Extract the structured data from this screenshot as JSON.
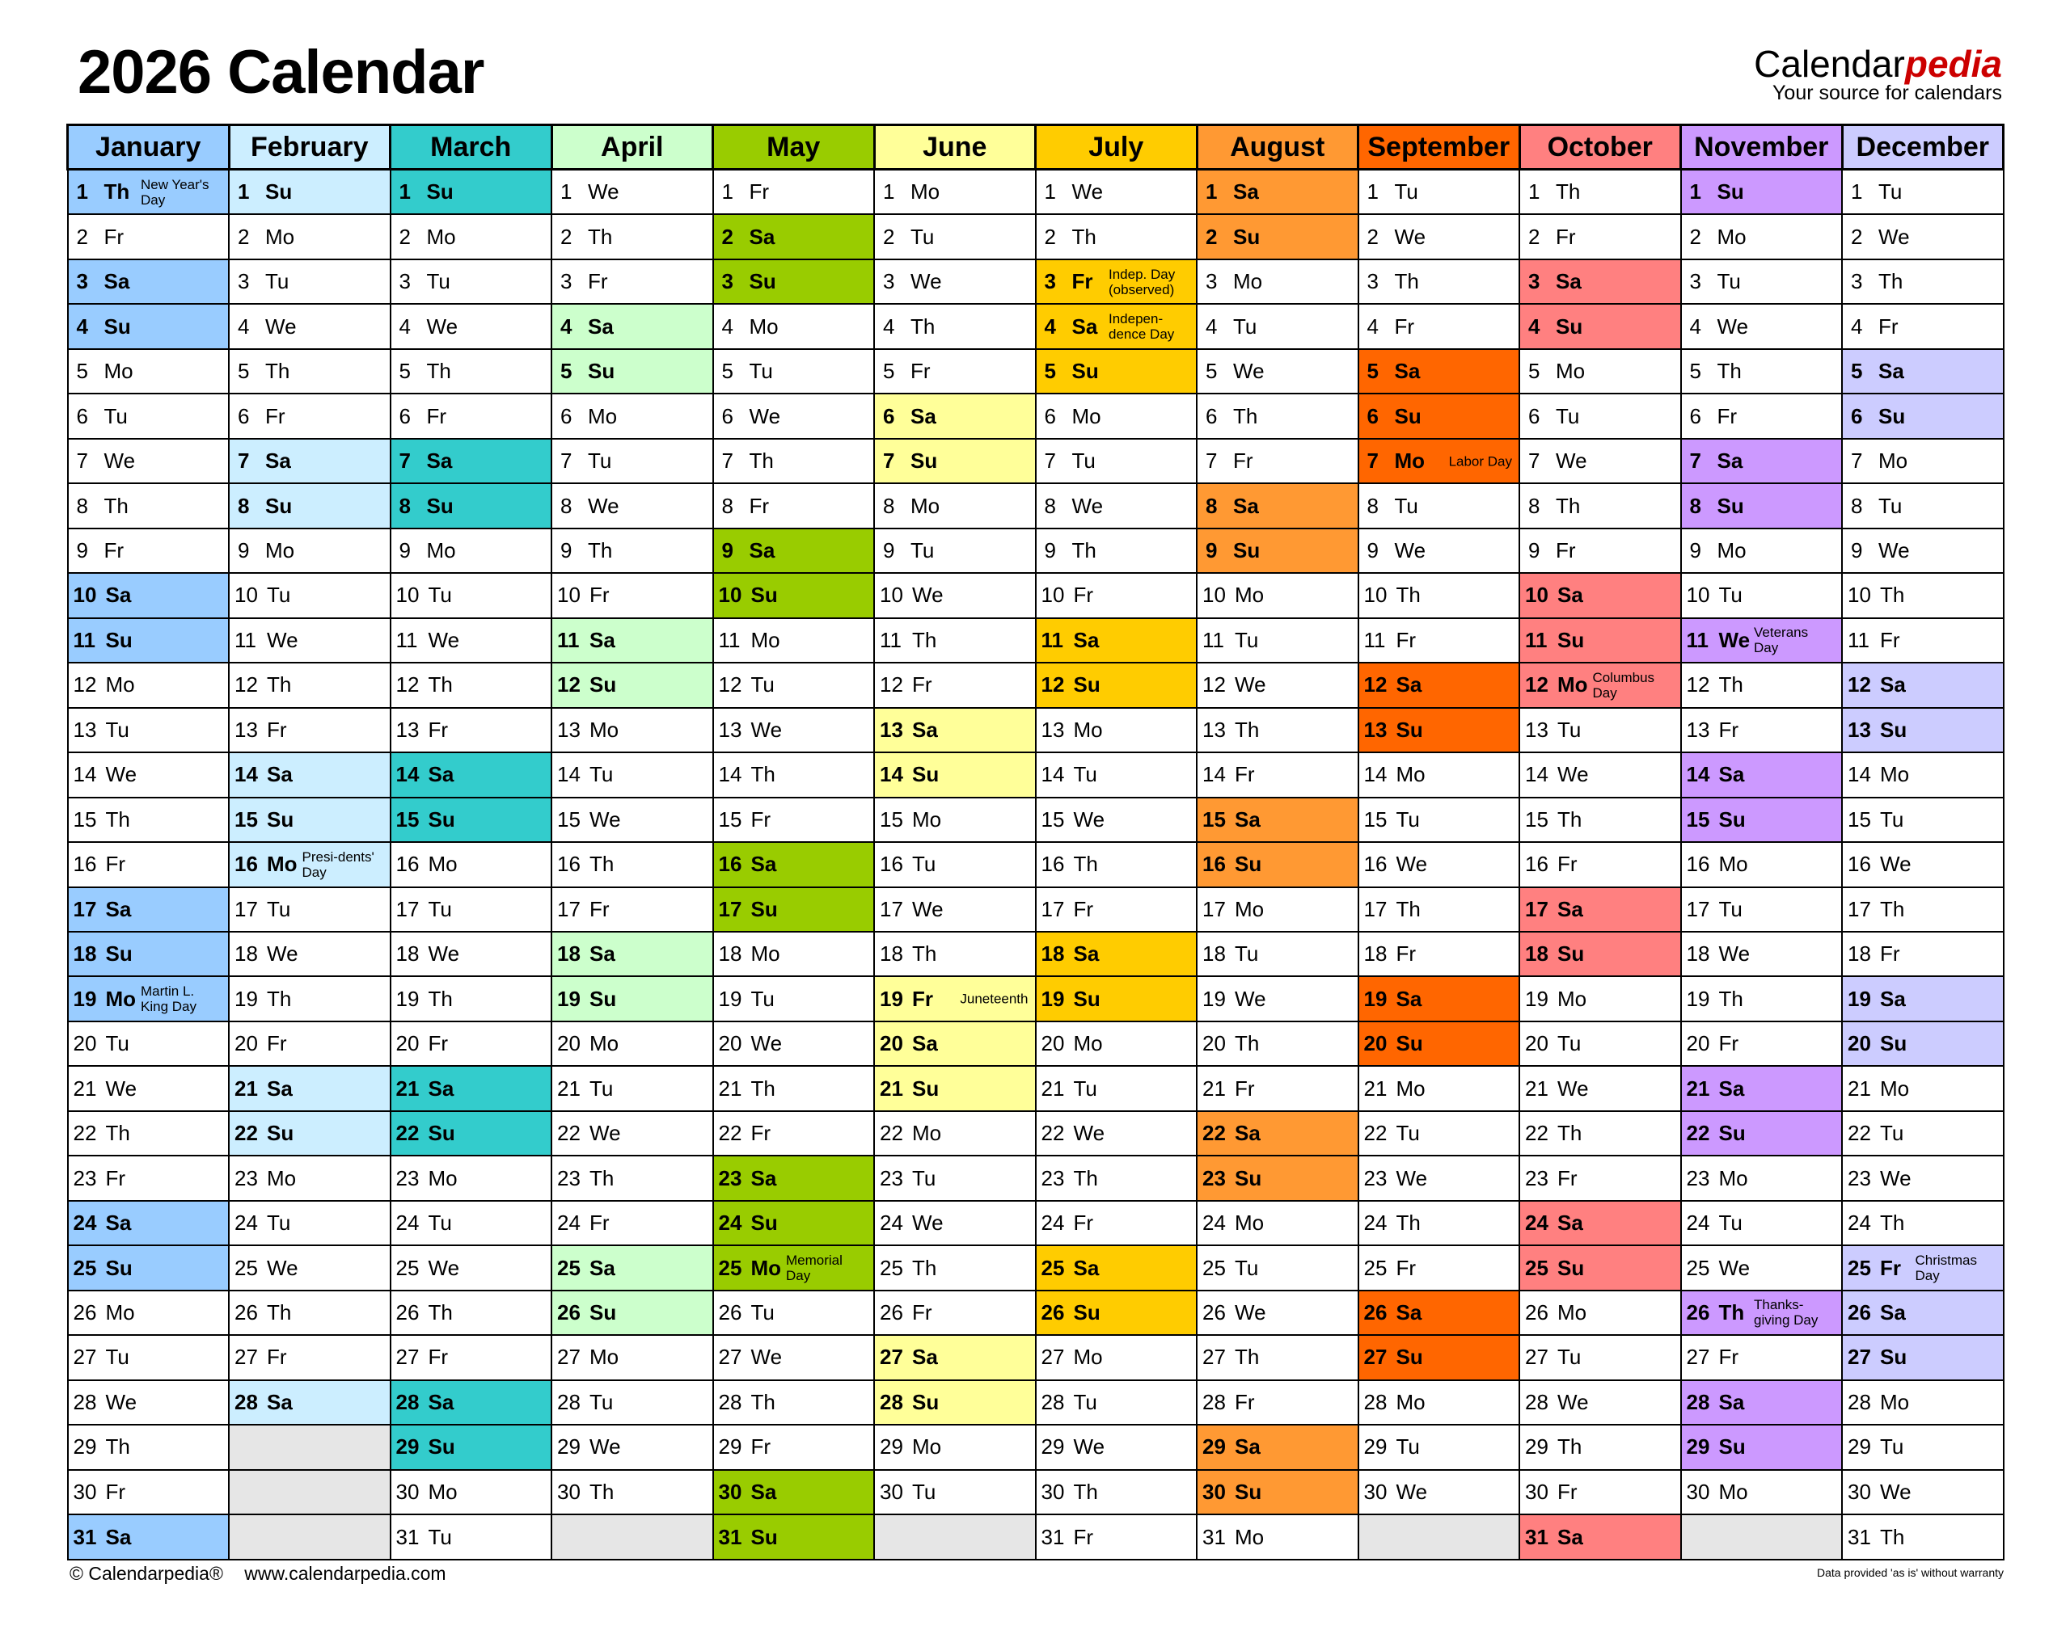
{
  "header": {
    "title": "2026 Calendar",
    "logo_main": "Calendar",
    "logo_accent": "pedia",
    "logo_tagline": "Your source for calendars"
  },
  "weekday_abbr": [
    "Mo",
    "Tu",
    "We",
    "Th",
    "Fr",
    "Sa",
    "Su"
  ],
  "weekend_days": [
    "Sa",
    "Su"
  ],
  "empty_cell_color": "#e6e6e6",
  "months": [
    {
      "name": "January",
      "color": "#99ccff",
      "first_weekday": "Th",
      "days": 31,
      "holidays": {
        "1": "New Year's Day",
        "19": "Martin L. King Day"
      }
    },
    {
      "name": "February",
      "color": "#cceeff",
      "first_weekday": "Su",
      "days": 28,
      "holidays": {
        "16": "Presi-dents' Day"
      }
    },
    {
      "name": "March",
      "color": "#33cccc",
      "first_weekday": "Su",
      "days": 31,
      "holidays": {}
    },
    {
      "name": "April",
      "color": "#ccffcc",
      "first_weekday": "We",
      "days": 30,
      "holidays": {}
    },
    {
      "name": "May",
      "color": "#99cc00",
      "first_weekday": "Fr",
      "days": 31,
      "holidays": {
        "25": "Memorial Day"
      }
    },
    {
      "name": "June",
      "color": "#ffff99",
      "first_weekday": "Mo",
      "days": 30,
      "holidays": {
        "19": "Juneteenth"
      }
    },
    {
      "name": "July",
      "color": "#ffcc00",
      "first_weekday": "We",
      "days": 31,
      "holidays": {
        "3": "Indep. Day (observed)",
        "4": "Indepen-dence Day"
      }
    },
    {
      "name": "August",
      "color": "#ff9933",
      "first_weekday": "Sa",
      "days": 31,
      "holidays": {}
    },
    {
      "name": "September",
      "color": "#ff6600",
      "first_weekday": "Tu",
      "days": 30,
      "holidays": {
        "7": "Labor Day"
      }
    },
    {
      "name": "October",
      "color": "#ff8080",
      "first_weekday": "Th",
      "days": 31,
      "holidays": {
        "12": "Columbus Day"
      }
    },
    {
      "name": "November",
      "color": "#cc99ff",
      "first_weekday": "Su",
      "days": 30,
      "holidays": {
        "11": "Veterans Day",
        "26": "Thanks-giving Day"
      }
    },
    {
      "name": "December",
      "color": "#ccccff",
      "first_weekday": "Tu",
      "days": 31,
      "holidays": {
        "25": "Christmas Day"
      }
    }
  ],
  "footer": {
    "copyright": "© Calendarpedia®",
    "url": "www.calendarpedia.com",
    "disclaimer": "Data provided 'as is' without warranty"
  }
}
